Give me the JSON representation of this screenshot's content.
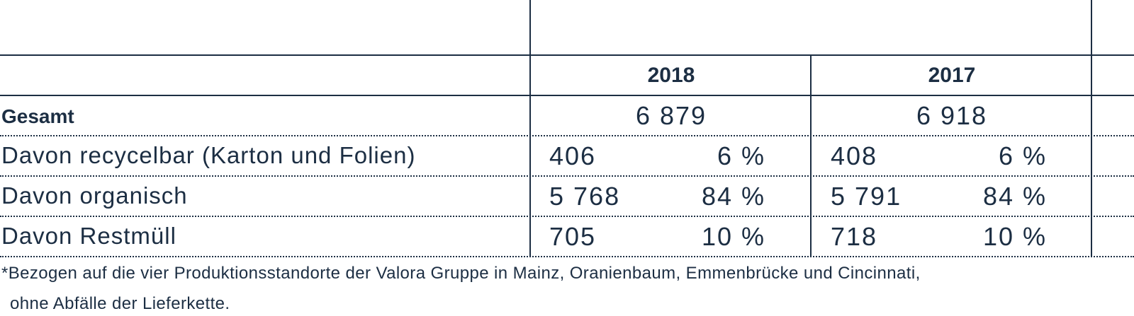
{
  "table": {
    "columns": [
      {
        "year": "2018"
      },
      {
        "year": "2017"
      }
    ],
    "total_row": {
      "label": "Gesamt",
      "values": [
        "6 879",
        "6 918"
      ]
    },
    "rows": [
      {
        "label": "Davon recycelbar (Karton und Folien)",
        "values_2018": {
          "amount": "406",
          "share": "6 %"
        },
        "values_2017": {
          "amount": "408",
          "share": "6 %"
        }
      },
      {
        "label": "Davon organisch",
        "values_2018": {
          "amount": "5 768",
          "share": "84 %"
        },
        "values_2017": {
          "amount": "5 791",
          "share": "84 %"
        }
      },
      {
        "label": "Davon Restmüll",
        "values_2018": {
          "amount": "705",
          "share": "10 %"
        },
        "values_2017": {
          "amount": "718",
          "share": "10 %"
        }
      }
    ]
  },
  "footnote": {
    "line1": "*Bezogen auf die vier Produktionsstandorte der Valora Gruppe in Mainz, Oranienbaum, Emmenbrücke und Cincinnati,",
    "line2": "ohne Abfälle der Lieferkette."
  }
}
